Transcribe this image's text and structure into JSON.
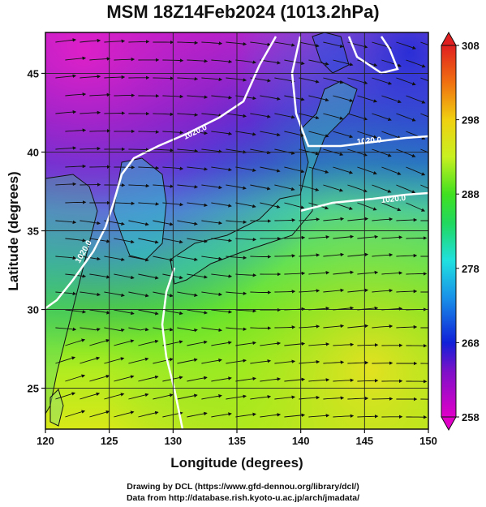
{
  "title": "MSM 18Z14Feb2024 (1013.2hPa)",
  "map": {
    "xlabel": "Longitude (degrees)",
    "ylabel": "Latitude  (degrees)",
    "xlim": [
      120,
      150
    ],
    "ylim": [
      22.4,
      47.6
    ],
    "xticks": [
      120,
      125,
      130,
      135,
      140,
      145,
      150
    ],
    "yticks": [
      25,
      30,
      35,
      40,
      45
    ],
    "contour_labels": [
      "1020.0",
      "1020.0",
      "1020.0",
      "1020.0"
    ],
    "colorbar": {
      "ticks": [
        258,
        268,
        278,
        288,
        298,
        308
      ],
      "min": 258,
      "max": 308
    },
    "colors": {
      "cold": "#e020c0",
      "cool": "#2040e0",
      "mid": "#30d0d0",
      "warm": "#30e040",
      "hot": "#f0e020",
      "contour": "#ffffff"
    }
  },
  "credits": {
    "line1": "Drawing by DCL (https://www.gfd-dennou.org/library/dcl/)",
    "line2": "Data from http://database.rish.kyoto-u.ac.jp/arch/jmadata/"
  }
}
